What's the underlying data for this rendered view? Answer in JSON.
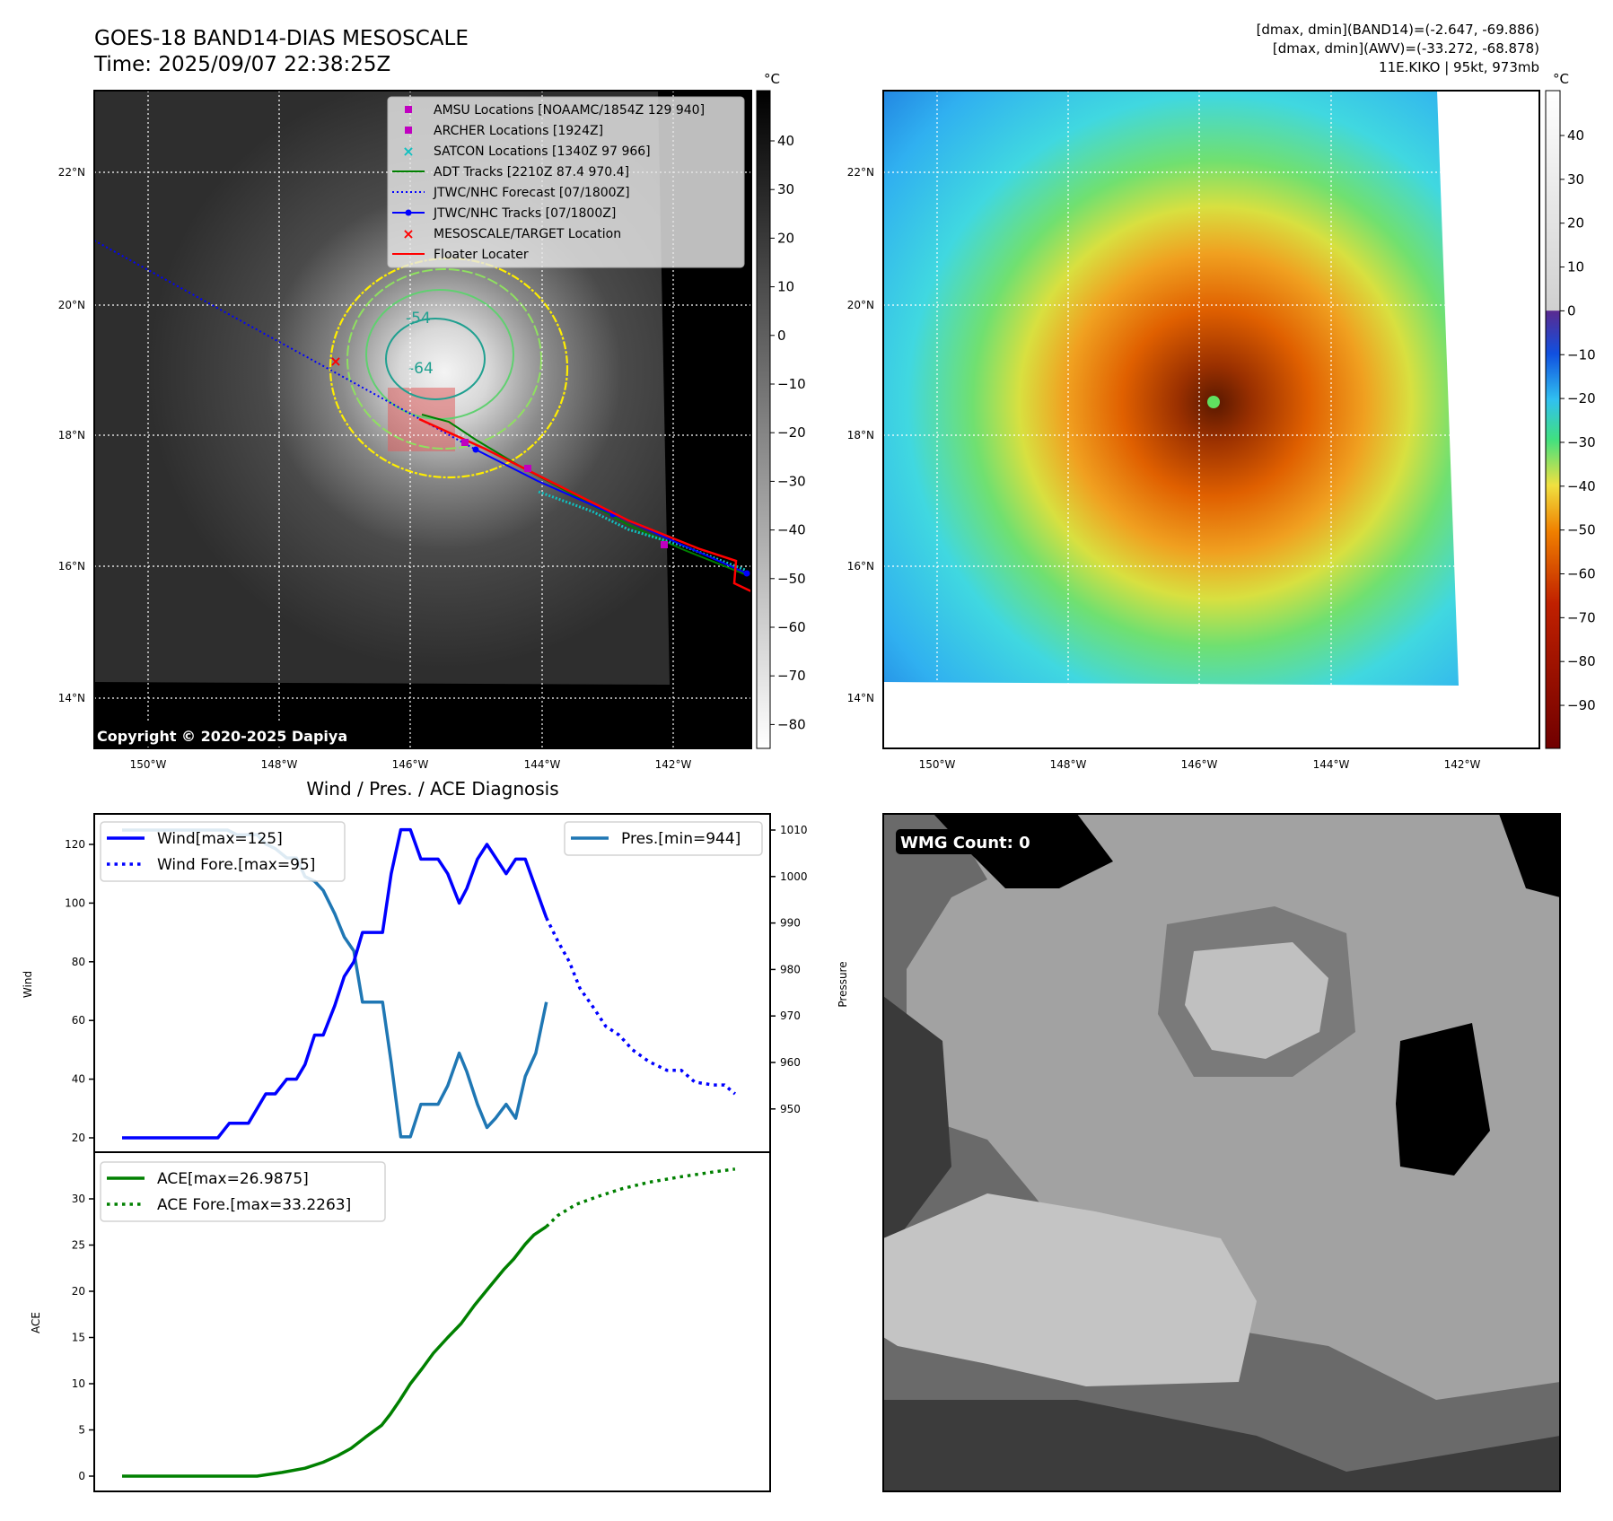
{
  "header": {
    "title": "GOES-18 BAND14-DIAS MESOSCALE",
    "time": "Time: 2025/09/07 22:38:25Z",
    "info_line1": "[dmax, dmin](BAND14)=(-2.647, -69.886)",
    "info_line2": "[dmax, dmin](AWV)=(-33.272, -68.878)",
    "info_line3": "11E.KIKO | 95kt, 973mb"
  },
  "maps": {
    "lon_ticks": [
      "150°W",
      "148°W",
      "146°W",
      "144°W",
      "142°W"
    ],
    "lat_ticks": [
      "22°N",
      "20°N",
      "18°N",
      "16°N",
      "14°N"
    ],
    "copyright": "Copyright © 2020-2025 Dapiya",
    "contour_labels": [
      "-54",
      "-64"
    ],
    "colorbar1": {
      "unit": "°C",
      "ticks": [
        40,
        30,
        20,
        10,
        0,
        -10,
        -20,
        -30,
        -40,
        -50,
        -60,
        -70,
        -80
      ]
    },
    "colorbar2": {
      "unit": "°C",
      "ticks": [
        40,
        30,
        20,
        10,
        0,
        -10,
        -20,
        -30,
        -40,
        -50,
        -60,
        -70,
        -80,
        -90
      ]
    },
    "legend": [
      {
        "label": "AMSU Locations [NOAAMC/1854Z 129 940]",
        "marker": "square",
        "color": "#c000c0"
      },
      {
        "label": "ARCHER Locations [1924Z]",
        "marker": "square",
        "color": "#c000c0"
      },
      {
        "label": "SATCON Locations [1340Z 97 966]",
        "marker": "x",
        "color": "#10c0c0"
      },
      {
        "label": "ADT Tracks [2210Z 87.4 970.4]",
        "marker": "line",
        "color": "#008000"
      },
      {
        "label": "JTWC/NHC Forecast [07/1800Z]",
        "marker": "dotted",
        "color": "#0000ff"
      },
      {
        "label": "JTWC/NHC Tracks [07/1800Z]",
        "marker": "line-dot",
        "color": "#0000ff"
      },
      {
        "label": "MESOSCALE/TARGET Location",
        "marker": "x",
        "color": "#ff0000"
      },
      {
        "label": "Floater Locater",
        "marker": "line",
        "color": "#ff0000"
      }
    ]
  },
  "wmg": {
    "label": "WMG Count: 0"
  },
  "chart_data": [
    {
      "type": "line",
      "title": "Wind / Pres. / ACE Diagnosis",
      "ylabel": "Wind",
      "ylabel_right": "Pressure",
      "ylim": [
        15,
        130
      ],
      "yticks": [
        20,
        40,
        60,
        80,
        100,
        120
      ],
      "ylim_right": [
        938,
        1011
      ],
      "yticks_right": [
        950,
        960,
        970,
        980,
        990,
        1000,
        1010
      ],
      "xlim": [
        -1.8,
        66.6
      ],
      "series": [
        {
          "name": "Wind[max=125]",
          "color": "#0000ff",
          "style": "solid",
          "axis": "left",
          "x": [
            0,
            10,
            11.2,
            13.2,
            15,
            16,
            17.2,
            18.2,
            19.1,
            20.1,
            21,
            22.2,
            23.2,
            24.2,
            25.1,
            27.2,
            28.1,
            29.1,
            30.1,
            31.2,
            33,
            34,
            35.2,
            36,
            37.1,
            38.1,
            40.1,
            41.1,
            42.1,
            43.2,
            44.3
          ],
          "y": [
            20,
            20,
            25,
            25,
            35,
            35,
            40,
            40,
            45,
            55,
            55,
            65,
            75,
            80,
            90,
            90,
            110,
            125,
            125,
            115,
            115,
            110,
            100,
            105,
            115,
            120,
            110,
            115,
            115,
            105,
            95
          ]
        },
        {
          "name": "Wind Fore.[max=95]",
          "color": "#0000ff",
          "style": "dotted",
          "axis": "left",
          "x": [
            44.3,
            45.5,
            46.7,
            47.8,
            49.3,
            50.5,
            51.9,
            53.3,
            55,
            56.9,
            58.4,
            59.8,
            61.7,
            62.9,
            64
          ],
          "y": [
            95,
            87,
            80,
            71,
            64,
            58,
            55,
            50,
            46,
            43,
            43,
            39,
            38,
            38,
            35
          ]
        },
        {
          "name": "Pres.[min=944]",
          "color": "#1f77b4",
          "style": "solid",
          "axis": "right",
          "x": [
            0,
            11,
            12,
            14.1,
            15,
            16,
            17.2,
            18.2,
            19.1,
            20.1,
            21,
            22.2,
            23.2,
            24.2,
            25.1,
            27.2,
            28.1,
            29.1,
            30.1,
            31.2,
            33,
            34,
            35.2,
            36,
            37.1,
            38.1,
            39,
            40.1,
            41.1,
            42.1,
            43.2,
            44.3
          ],
          "y": [
            1010,
            1010,
            1009,
            1009,
            1007,
            1006,
            1004,
            1004,
            1000,
            999,
            997,
            992,
            987,
            984,
            973,
            973,
            960,
            944,
            944,
            951,
            951,
            955,
            962,
            958,
            951,
            946,
            948,
            951,
            948,
            957,
            962,
            973
          ]
        }
      ]
    },
    {
      "type": "line",
      "ylabel": "ACE",
      "ylim": [
        -1.8,
        33.6
      ],
      "yticks": [
        0,
        5,
        10,
        15,
        20,
        25,
        30
      ],
      "xlim": [
        -1.8,
        66.6
      ],
      "series": [
        {
          "name": "ACE[max=26.9875]",
          "color": "#008000",
          "style": "solid",
          "x": [
            0,
            14.1,
            16.7,
            19.1,
            21,
            22.5,
            23.9,
            25.4,
            27.1,
            28,
            29,
            30.1,
            31.3,
            32.5,
            34,
            35.4,
            36.8,
            38.3,
            39.9,
            40.9,
            42.1,
            43,
            44.3
          ],
          "y": [
            0,
            0,
            0.4,
            0.85,
            1.5,
            2.2,
            3,
            4.2,
            5.5,
            6.7,
            8.2,
            10,
            11.6,
            13.3,
            15,
            16.5,
            18.5,
            20.4,
            22.4,
            23.5,
            25.1,
            26.1,
            27
          ]
        },
        {
          "name": "ACE Fore.[max=33.2263]",
          "color": "#008000",
          "style": "dotted",
          "x": [
            44.3,
            45.5,
            47.4,
            49.8,
            52.2,
            55,
            58.4,
            61.7,
            64
          ],
          "y": [
            27,
            28.2,
            29.4,
            30.3,
            31.1,
            31.8,
            32.4,
            32.9,
            33.2263
          ]
        }
      ]
    }
  ]
}
